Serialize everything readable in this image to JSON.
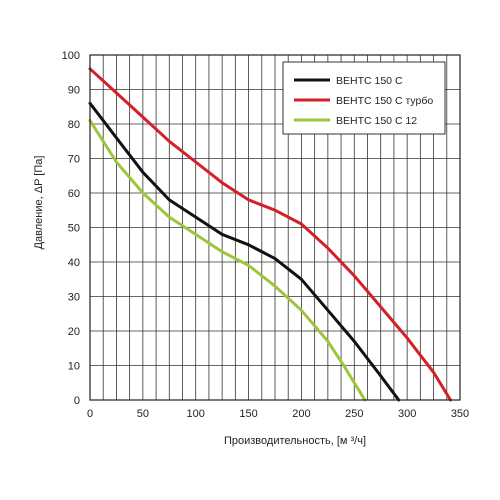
{
  "chart_data": {
    "type": "line",
    "title": "",
    "xlabel": "Производительность, [м ³/ч]",
    "ylabel": "Давление, ΔP [Па]",
    "xlim": [
      0,
      350
    ],
    "ylim": [
      0,
      100
    ],
    "xticks": [
      0,
      50,
      100,
      150,
      200,
      250,
      300,
      350
    ],
    "yticks": [
      0,
      10,
      20,
      30,
      40,
      50,
      60,
      70,
      80,
      90,
      100
    ],
    "grid": true,
    "legend_position": "top-right",
    "series": [
      {
        "name": "ВЕНТС 150 С",
        "color": "#111111",
        "x": [
          0,
          25,
          50,
          75,
          100,
          125,
          150,
          175,
          200,
          225,
          250,
          275,
          292
        ],
        "y": [
          86,
          76,
          66,
          58,
          53,
          48,
          45,
          41,
          35,
          26,
          17,
          7,
          0
        ]
      },
      {
        "name": "ВЕНТС 150 С турбо",
        "color": "#d42027",
        "x": [
          0,
          25,
          50,
          75,
          100,
          125,
          150,
          175,
          200,
          225,
          250,
          275,
          300,
          325,
          341
        ],
        "y": [
          96,
          89,
          82,
          75,
          69,
          63,
          58,
          55,
          51,
          44,
          36,
          27,
          18,
          8,
          0
        ]
      },
      {
        "name": "ВЕНТС 150 С 12",
        "color": "#9dc63b",
        "x": [
          0,
          25,
          50,
          75,
          100,
          125,
          150,
          175,
          200,
          225,
          240,
          250,
          260
        ],
        "y": [
          81,
          69,
          60,
          53,
          48,
          43,
          39,
          33,
          26,
          17,
          10,
          5,
          0
        ]
      }
    ]
  }
}
